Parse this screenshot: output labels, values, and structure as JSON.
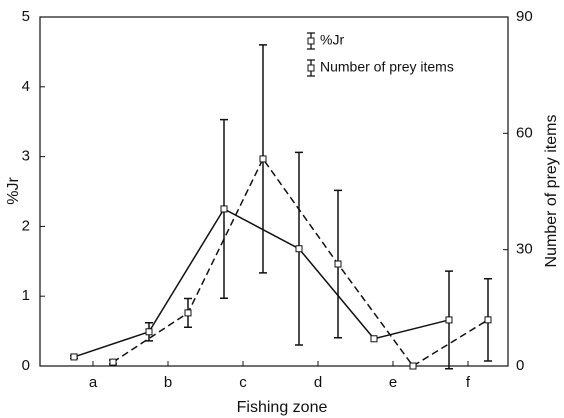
{
  "chart_data": {
    "type": "line",
    "x_label": "Fishing zone",
    "y_label": "%Jr",
    "y2_label": "Number of prey items",
    "categories": [
      "a",
      "b",
      "c",
      "d",
      "e",
      "f"
    ],
    "series": [
      {
        "name": "%Jr",
        "color": "#111111",
        "line_style": "solid",
        "axis": "y",
        "values": [
          0.13,
          0.49,
          2.25,
          1.68,
          0.39,
          0.66
        ],
        "errors": [
          0.02,
          0.13,
          1.28,
          1.38,
          null,
          0.7
        ]
      },
      {
        "name": "Number of prey items",
        "color": "#111111",
        "line_style": "dashed",
        "axis": "y2",
        "values": [
          1.0,
          13.7,
          53.4,
          26.3,
          0,
          11.9
        ],
        "errors": [
          0.5,
          3.7,
          29.4,
          19.0,
          null,
          10.6
        ]
      }
    ],
    "ylim": [
      0,
      5
    ],
    "yticks": [
      0,
      1,
      2,
      3,
      4,
      5
    ],
    "y2lim": [
      0,
      90
    ],
    "y2ticks": [
      0,
      30,
      60,
      90
    ],
    "grid": false,
    "legend": "top-right"
  }
}
